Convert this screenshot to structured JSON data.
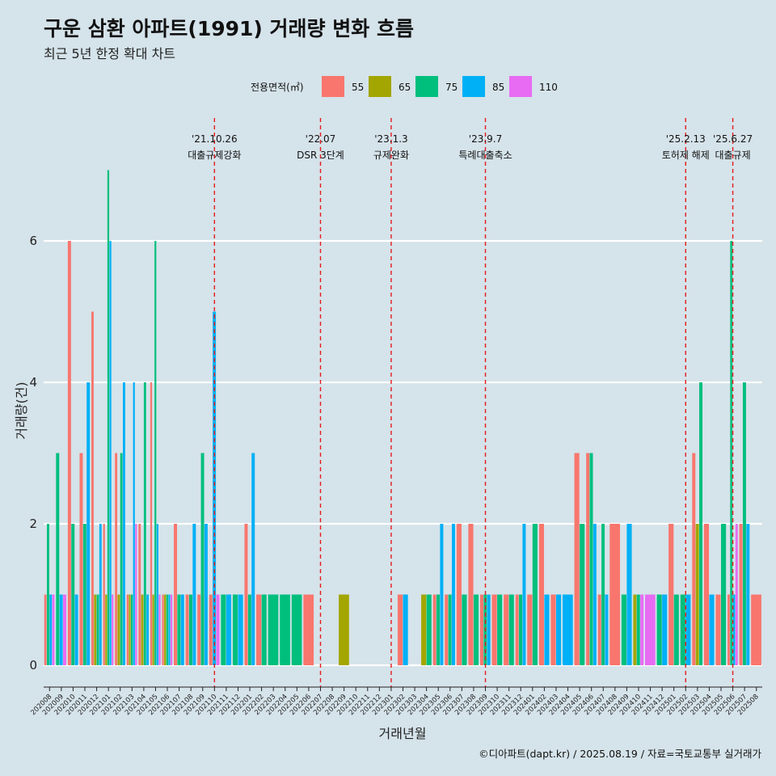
{
  "title": "구운 삼환 아파트(1991) 거래량 변화 흐름",
  "subtitle": "최근 5년 한정 확대 차트",
  "caption": "©디아파트(dapt.kr) / 2025.08.19 / 자료=국토교통부 실거래가",
  "chart_data": {
    "type": "bar",
    "xlabel": "거래년월",
    "ylabel": "거래량(건)",
    "ylim": [
      -0.4,
      7.2
    ],
    "yticks": [
      0,
      2,
      4,
      6
    ],
    "grid": true,
    "legend_position": "top",
    "legend_title": "전용면적(㎡)",
    "series": [
      {
        "name": "55",
        "color": "#f8766d"
      },
      {
        "name": "65",
        "color": "#a3a500"
      },
      {
        "name": "75",
        "color": "#00bf7d"
      },
      {
        "name": "85",
        "color": "#00b0f6"
      },
      {
        "name": "110",
        "color": "#e76bf3"
      }
    ],
    "categories": [
      "202008",
      "202009",
      "202010",
      "202011",
      "202012",
      "202101",
      "202102",
      "202103",
      "202104",
      "202105",
      "202106",
      "202107",
      "202108",
      "202109",
      "202110",
      "202111",
      "202112",
      "202201",
      "202202",
      "202203",
      "202204",
      "202205",
      "202206",
      "202207",
      "202208",
      "202209",
      "202210",
      "202211",
      "202212",
      "202301",
      "202302",
      "202303",
      "202304",
      "202305",
      "202306",
      "202307",
      "202308",
      "202309",
      "202310",
      "202311",
      "202312",
      "202401",
      "202402",
      "202403",
      "202404",
      "202405",
      "202406",
      "202407",
      "202408",
      "202409",
      "202410",
      "202411",
      "202412",
      "202501",
      "202502",
      "202503",
      "202504",
      "202505",
      "202506",
      "202507",
      "202508"
    ],
    "values": [
      [
        1,
        0,
        2,
        1,
        1
      ],
      [
        0,
        0,
        3,
        1,
        1
      ],
      [
        6,
        0,
        2,
        1,
        0
      ],
      [
        3,
        0,
        2,
        4,
        0
      ],
      [
        5,
        1,
        1,
        2,
        0
      ],
      [
        2,
        1,
        7,
        6,
        1
      ],
      [
        3,
        1,
        3,
        4,
        0
      ],
      [
        1,
        1,
        1,
        4,
        2
      ],
      [
        2,
        1,
        4,
        1,
        0
      ],
      [
        4,
        1,
        6,
        2,
        1
      ],
      [
        1,
        1,
        1,
        1,
        1
      ],
      [
        2,
        0,
        1,
        1,
        0
      ],
      [
        1,
        0,
        1,
        2,
        0
      ],
      [
        1,
        0,
        3,
        2,
        0
      ],
      [
        1,
        0,
        0,
        5,
        1
      ],
      [
        0,
        0,
        1,
        1,
        0
      ],
      [
        0,
        0,
        1,
        1,
        0
      ],
      [
        2,
        0,
        1,
        3,
        0
      ],
      [
        1,
        0,
        1,
        0,
        0
      ],
      [
        0,
        0,
        1,
        0,
        0
      ],
      [
        0,
        0,
        1,
        0,
        0
      ],
      [
        0,
        0,
        1,
        0,
        0
      ],
      [
        1,
        0,
        0,
        0,
        0
      ],
      [
        0,
        0,
        0,
        0,
        0
      ],
      [
        0,
        0,
        0,
        0,
        0
      ],
      [
        0,
        1,
        0,
        0,
        0
      ],
      [
        0,
        0,
        0,
        0,
        0
      ],
      [
        0,
        0,
        0,
        0,
        0
      ],
      [
        0,
        0,
        0,
        0,
        0
      ],
      [
        0,
        0,
        0,
        0,
        0
      ],
      [
        1,
        0,
        0,
        1,
        0
      ],
      [
        0,
        0,
        0,
        0,
        0
      ],
      [
        0,
        1,
        1,
        0,
        0
      ],
      [
        1,
        0,
        1,
        2,
        0
      ],
      [
        1,
        0,
        1,
        2,
        0
      ],
      [
        2,
        0,
        1,
        0,
        0
      ],
      [
        2,
        0,
        1,
        0,
        0
      ],
      [
        1,
        0,
        1,
        1,
        0
      ],
      [
        1,
        0,
        1,
        0,
        0
      ],
      [
        1,
        0,
        1,
        0,
        0
      ],
      [
        1,
        0,
        1,
        2,
        0
      ],
      [
        1,
        0,
        2,
        0,
        0
      ],
      [
        2,
        0,
        0,
        1,
        0
      ],
      [
        1,
        0,
        0,
        1,
        0
      ],
      [
        0,
        0,
        0,
        1,
        0
      ],
      [
        3,
        0,
        2,
        0,
        0
      ],
      [
        3,
        0,
        3,
        2,
        0
      ],
      [
        1,
        0,
        2,
        1,
        0
      ],
      [
        2,
        0,
        0,
        0,
        0
      ],
      [
        0,
        0,
        1,
        2,
        0
      ],
      [
        0,
        1,
        1,
        0,
        1
      ],
      [
        0,
        0,
        0,
        0,
        1
      ],
      [
        0,
        0,
        1,
        1,
        0
      ],
      [
        2,
        0,
        1,
        0,
        0
      ],
      [
        0,
        0,
        1,
        1,
        0
      ],
      [
        3,
        2,
        4,
        0,
        0
      ],
      [
        2,
        0,
        0,
        1,
        0
      ],
      [
        1,
        0,
        2,
        0,
        0
      ],
      [
        1,
        0,
        6,
        1,
        2
      ],
      [
        2,
        0,
        4,
        2,
        0
      ],
      [
        1,
        0,
        0,
        0,
        0
      ]
    ],
    "events": [
      {
        "date": "'21.10.26",
        "text": "대출규제강화",
        "at": "202110"
      },
      {
        "date": "'22.07",
        "text": "DSR 3단계",
        "at": "202207"
      },
      {
        "date": "'23.1.3",
        "text": "규제완화",
        "at": "202301"
      },
      {
        "date": "'23.9.7",
        "text": "특례대출축소",
        "at": "202309"
      },
      {
        "date": "'25.2.13",
        "text": "토허제 해제",
        "at": "202502"
      },
      {
        "date": "'25.6.27",
        "text": "대출규제",
        "at": "202506"
      }
    ]
  }
}
